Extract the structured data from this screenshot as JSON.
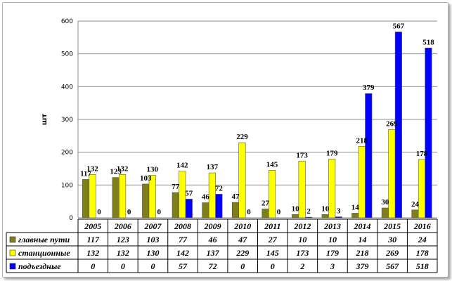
{
  "chart_data": {
    "type": "bar",
    "ylabel": "шт",
    "ylim": [
      0,
      600
    ],
    "yticks": [
      0,
      100,
      200,
      300,
      400,
      500,
      600
    ],
    "grid": true,
    "legend_placement": "data table",
    "categories": [
      "2005",
      "2006",
      "2007",
      "2008",
      "2009",
      "2010",
      "2011",
      "2012",
      "2013",
      "2014",
      "2015",
      "2016"
    ],
    "series": [
      {
        "name": "главные пути",
        "color": "#7f7f1a",
        "values": [
          117,
          123,
          103,
          77,
          46,
          47,
          27,
          10,
          10,
          14,
          30,
          24
        ]
      },
      {
        "name": "станционные",
        "color": "#ffff00",
        "values": [
          132,
          132,
          130,
          142,
          137,
          229,
          145,
          173,
          179,
          218,
          269,
          178
        ]
      },
      {
        "name": "подъездные",
        "color": "#0000ff",
        "values": [
          0,
          0,
          0,
          57,
          72,
          0,
          0,
          2,
          3,
          379,
          567,
          518
        ]
      }
    ]
  }
}
